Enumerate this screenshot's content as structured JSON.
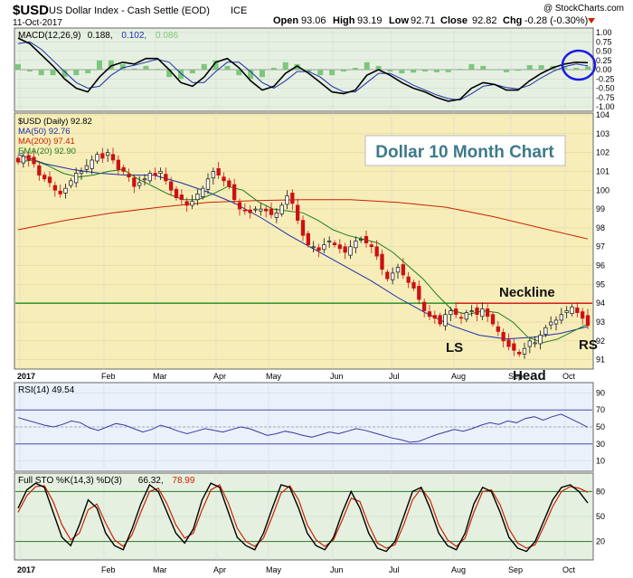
{
  "header": {
    "symbol": "$USD",
    "name": "US Dollar Index - Cash Settle (EOD)",
    "exchange": "ICE",
    "date": "11-Oct-2017",
    "copyright": "@ StockCharts.com",
    "open_label": "Open",
    "open": "93.06",
    "high_label": "High",
    "high": "93.19",
    "low_label": "Low",
    "low": "92.71",
    "close_label": "Close",
    "close": "92.82",
    "chg_label": "Chg",
    "chg": "-0.28 (-0.30%)",
    "chg_icon": "down-triangle-icon"
  },
  "colors": {
    "background": "#ffffff",
    "panel_macd": "#e6f0e2",
    "panel_price": "#f6edb9",
    "panel_rsi": "#eaf1fb",
    "panel_sto": "#e5f0e0",
    "ma50": "#1c2fa8",
    "ma200": "#cc2200",
    "ema20": "#1e7d1e",
    "neckline": "#1a8c1a",
    "neckline_red": "#dd1111",
    "annotation_title": "#3d7a8a",
    "circle": "#1a1ae6"
  },
  "chart_data": {
    "type": "candlestick",
    "title": "Dollar 10 Month Chart",
    "x_axis_labels": [
      "2017",
      "Feb",
      "Mar",
      "Apr",
      "May",
      "Jun",
      "Jul",
      "Aug",
      "Sep",
      "Oct"
    ],
    "panels": [
      {
        "name": "macd",
        "legend": [
          {
            "text": "MACD(12,26,9)",
            "color": "#000000"
          },
          {
            "text": "0.188,",
            "color": "#000000"
          },
          {
            "text": "0.102,",
            "color": "#1c2fa8"
          },
          {
            "text": "0.086",
            "color": "#7cc77c"
          }
        ],
        "y_ticks": [
          "1.00",
          "0.75",
          "0.50",
          "0.25",
          "0.00",
          "-0.25",
          "-0.50",
          "-0.75",
          "-1.00"
        ],
        "ylim": [
          -1.0,
          1.0
        ]
      },
      {
        "name": "price",
        "legend": [
          {
            "text": "$USD (Daily) 92.82",
            "color": "#000000"
          },
          {
            "text": "MA(50) 92.76",
            "color": "#1c2fa8"
          },
          {
            "text": "MA(200) 97.41",
            "color": "#cc2200"
          },
          {
            "text": "EMA(20) 92.90",
            "color": "#1e7d1e"
          }
        ],
        "y_ticks": [
          "104",
          "103",
          "102",
          "101",
          "100",
          "99",
          "98",
          "97",
          "96",
          "95",
          "94",
          "93",
          "92",
          "91"
        ],
        "ylim": [
          90.6,
          104
        ],
        "neckline_level": 94,
        "annotations": {
          "title": "Dollar 10 Month Chart",
          "neckline": "Neckline",
          "left_shoulder": "LS",
          "head": "Head",
          "right_shoulder": "RS"
        },
        "close_series": [
          101.5,
          101.8,
          101.6,
          101.4,
          100.8,
          100.6,
          100.4,
          100.0,
          99.8,
          100.1,
          100.5,
          100.9,
          101.0,
          101.3,
          101.6,
          101.9,
          101.7,
          102.0,
          101.6,
          101.1,
          101.0,
          100.7,
          100.2,
          100.4,
          100.6,
          100.9,
          100.8,
          101.0,
          100.5,
          100.0,
          99.6,
          99.5,
          99.2,
          99.4,
          99.8,
          100.1,
          100.6,
          101.0,
          100.8,
          100.5,
          100.2,
          99.5,
          99.0,
          98.9,
          98.8,
          99.0,
          99.0,
          98.9,
          98.7,
          98.8,
          99.2,
          99.7,
          99.3,
          98.4,
          97.6,
          97.1,
          97.0,
          96.8,
          97.1,
          97.3,
          97.1,
          96.9,
          96.7,
          97.0,
          97.3,
          97.4,
          97.2,
          97.0,
          96.5,
          95.8,
          95.3,
          95.6,
          95.9,
          95.5,
          95.1,
          94.8,
          94.2,
          93.6,
          93.3,
          93.2,
          92.9,
          93.4,
          93.6,
          93.4,
          93.2,
          93.5,
          93.6,
          93.4,
          93.7,
          93.3,
          92.9,
          92.5,
          92.0,
          91.7,
          91.5,
          91.3,
          91.6,
          92.0,
          91.9,
          92.3,
          92.7,
          93.0,
          93.1,
          93.4,
          93.6,
          93.8,
          93.5,
          93.2,
          92.82
        ],
        "ma50": [
          101.9,
          101.4,
          101.1,
          100.9,
          100.8,
          100.8,
          100.4,
          99.9,
          99.3,
          98.5,
          97.6,
          96.8,
          96.0,
          95.2,
          94.3,
          93.5,
          92.8,
          92.3,
          92.1,
          92.2,
          92.4,
          92.76
        ],
        "ma200": [
          97.9,
          98.4,
          98.8,
          99.1,
          99.35,
          99.45,
          99.5,
          99.5,
          99.35,
          99.1,
          98.6,
          98.0,
          97.41
        ],
        "ema20": [
          101.5,
          101.6,
          101.3,
          100.9,
          100.7,
          100.8,
          101.0,
          101.1,
          100.6,
          100.2,
          99.8,
          99.5,
          99.5,
          99.8,
          100.2,
          100.0,
          99.4,
          99.0,
          98.9,
          98.8,
          98.4,
          97.9,
          97.6,
          97.4,
          97.2,
          96.7,
          96.0,
          95.3,
          94.4,
          93.6,
          93.4,
          93.6,
          93.5,
          93.0,
          92.2,
          91.9,
          92.1,
          92.5,
          92.9
        ]
      },
      {
        "name": "rsi",
        "legend": [
          {
            "text": "RSI(14) 49.54",
            "color": "#000000"
          }
        ],
        "y_ticks": [
          "90",
          "70",
          "50",
          "30",
          "10"
        ],
        "ylim": [
          0,
          100
        ],
        "series": [
          61,
          58,
          55,
          52,
          50,
          53,
          57,
          55,
          49,
          46,
          50,
          54,
          52,
          48,
          44,
          47,
          52,
          49,
          45,
          42,
          45,
          48,
          46,
          44,
          47,
          50,
          48,
          44,
          40,
          42,
          45,
          43,
          40,
          38,
          41,
          44,
          42,
          45,
          48,
          46,
          43,
          40,
          37,
          35,
          32,
          33,
          37,
          41,
          44,
          47,
          45,
          48,
          52,
          55,
          53,
          57,
          55,
          60,
          62,
          58,
          62,
          65,
          60,
          55,
          49.54
        ]
      },
      {
        "name": "sto",
        "legend": [
          {
            "text": "Full STO %K(14,3) %D(3)",
            "color": "#000000"
          },
          {
            "text": "66.32,",
            "color": "#000000"
          },
          {
            "text": "78.99",
            "color": "#cc2200"
          }
        ],
        "y_ticks": [
          "80",
          "50",
          "20"
        ],
        "ylim": [
          0,
          100
        ],
        "k": [
          60,
          82,
          90,
          85,
          55,
          25,
          15,
          40,
          70,
          60,
          30,
          15,
          10,
          35,
          65,
          88,
          80,
          55,
          30,
          18,
          35,
          70,
          90,
          85,
          55,
          25,
          15,
          10,
          30,
          60,
          88,
          85,
          60,
          30,
          15,
          10,
          25,
          55,
          80,
          60,
          30,
          12,
          8,
          20,
          50,
          80,
          85,
          60,
          30,
          15,
          10,
          30,
          65,
          85,
          80,
          55,
          25,
          12,
          8,
          20,
          45,
          70,
          85,
          88,
          80,
          66.32
        ],
        "d": [
          55,
          75,
          86,
          87,
          68,
          40,
          22,
          30,
          58,
          65,
          42,
          22,
          14,
          28,
          55,
          80,
          84,
          65,
          40,
          24,
          30,
          58,
          82,
          88,
          66,
          36,
          20,
          14,
          24,
          50,
          78,
          87,
          70,
          40,
          22,
          14,
          22,
          46,
          72,
          68,
          40,
          18,
          12,
          16,
          40,
          70,
          84,
          70,
          40,
          22,
          14,
          24,
          55,
          80,
          82,
          64,
          35,
          18,
          12,
          16,
          38,
          62,
          80,
          86,
          84,
          78.99
        ]
      }
    ]
  }
}
